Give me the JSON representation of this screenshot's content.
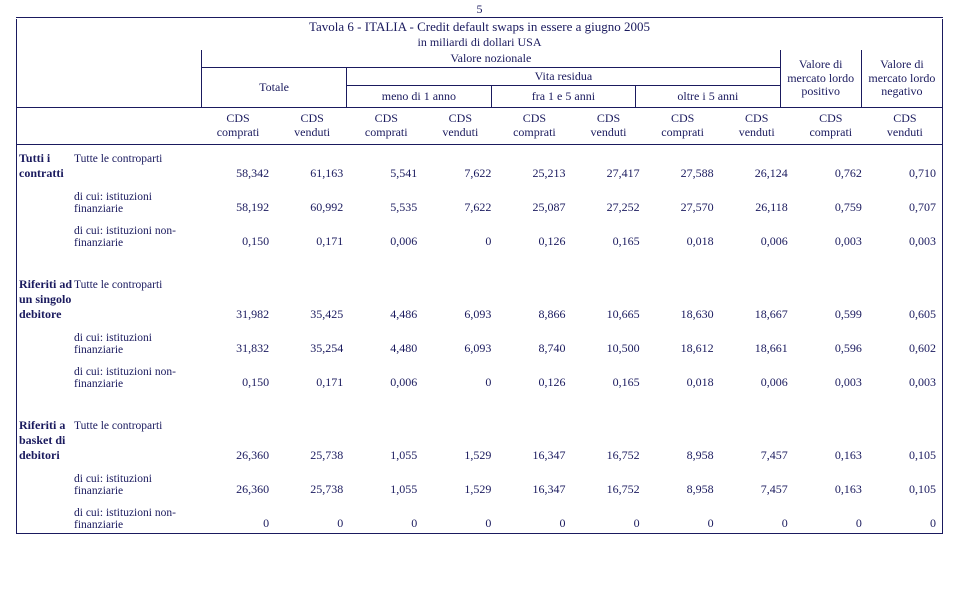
{
  "page_number": "5",
  "title": "Tavola 6 - ITALIA - Credit default swaps in essere a giugno 2005",
  "subtitle": "in miliardi di dollari USA",
  "header": {
    "valore_nozionale": "Valore nozionale",
    "totale": "Totale",
    "vita_residua": "Vita residua",
    "meno_1": "meno di  1 anno",
    "fra_1_5": "fra 1 e 5 anni",
    "oltre_5": "oltre i 5 anni",
    "pos": "Valore di mercato lordo positivo",
    "neg": "Valore di mercato lordo negativo",
    "cds_comprati": "CDS comprati",
    "cds_venduti": "CDS venduti",
    "cds_c_t": "CDS",
    "cds_c_b": "comprati",
    "cds_v_t": "CDS",
    "cds_v_b": "venduti"
  },
  "groups": [
    {
      "group_label": "Tutti i contratti",
      "rows": [
        {
          "label": "Tutte le controparti",
          "vals": [
            "58,342",
            "61,163",
            "5,541",
            "7,622",
            "25,213",
            "27,417",
            "27,588",
            "26,124",
            "0,762",
            "0,710"
          ]
        },
        {
          "label": "di cui: istituzioni finanziarie",
          "vals": [
            "58,192",
            "60,992",
            "5,535",
            "7,622",
            "25,087",
            "27,252",
            "27,570",
            "26,118",
            "0,759",
            "0,707"
          ]
        },
        {
          "label": "di cui: istituzioni non-finanziarie",
          "vals": [
            "0,150",
            "0,171",
            "0,006",
            "0",
            "0,126",
            "0,165",
            "0,018",
            "0,006",
            "0,003",
            "0,003"
          ]
        }
      ]
    },
    {
      "group_label": "Riferiti ad un singolo debitore",
      "rows": [
        {
          "label": "Tutte le controparti",
          "vals": [
            "31,982",
            "35,425",
            "4,486",
            "6,093",
            "8,866",
            "10,665",
            "18,630",
            "18,667",
            "0,599",
            "0,605"
          ]
        },
        {
          "label": "di cui: istituzioni finanziarie",
          "vals": [
            "31,832",
            "35,254",
            "4,480",
            "6,093",
            "8,740",
            "10,500",
            "18,612",
            "18,661",
            "0,596",
            "0,602"
          ]
        },
        {
          "label": "di cui: istituzioni non-finanziarie",
          "vals": [
            "0,150",
            "0,171",
            "0,006",
            "0",
            "0,126",
            "0,165",
            "0,018",
            "0,006",
            "0,003",
            "0,003"
          ]
        }
      ]
    },
    {
      "group_label": "Riferiti a basket di debitori",
      "rows": [
        {
          "label": "Tutte le controparti",
          "vals": [
            "26,360",
            "25,738",
            "1,055",
            "1,529",
            "16,347",
            "16,752",
            "8,958",
            "7,457",
            "0,163",
            "0,105"
          ]
        },
        {
          "label": "di cui: istituzioni finanziarie",
          "vals": [
            "26,360",
            "25,738",
            "1,055",
            "1,529",
            "16,347",
            "16,752",
            "8,958",
            "7,457",
            "0,163",
            "0,105"
          ]
        },
        {
          "label": "di cui: istituzioni non-finanziarie",
          "vals": [
            "0",
            "0",
            "0",
            "0",
            "0",
            "0",
            "0",
            "0",
            "0",
            "0"
          ]
        }
      ]
    }
  ],
  "style": {
    "text_color": "#1a1a5e",
    "border_color": "#1a1a5e",
    "background_color": "#ffffff",
    "font_family": "Times New Roman"
  }
}
